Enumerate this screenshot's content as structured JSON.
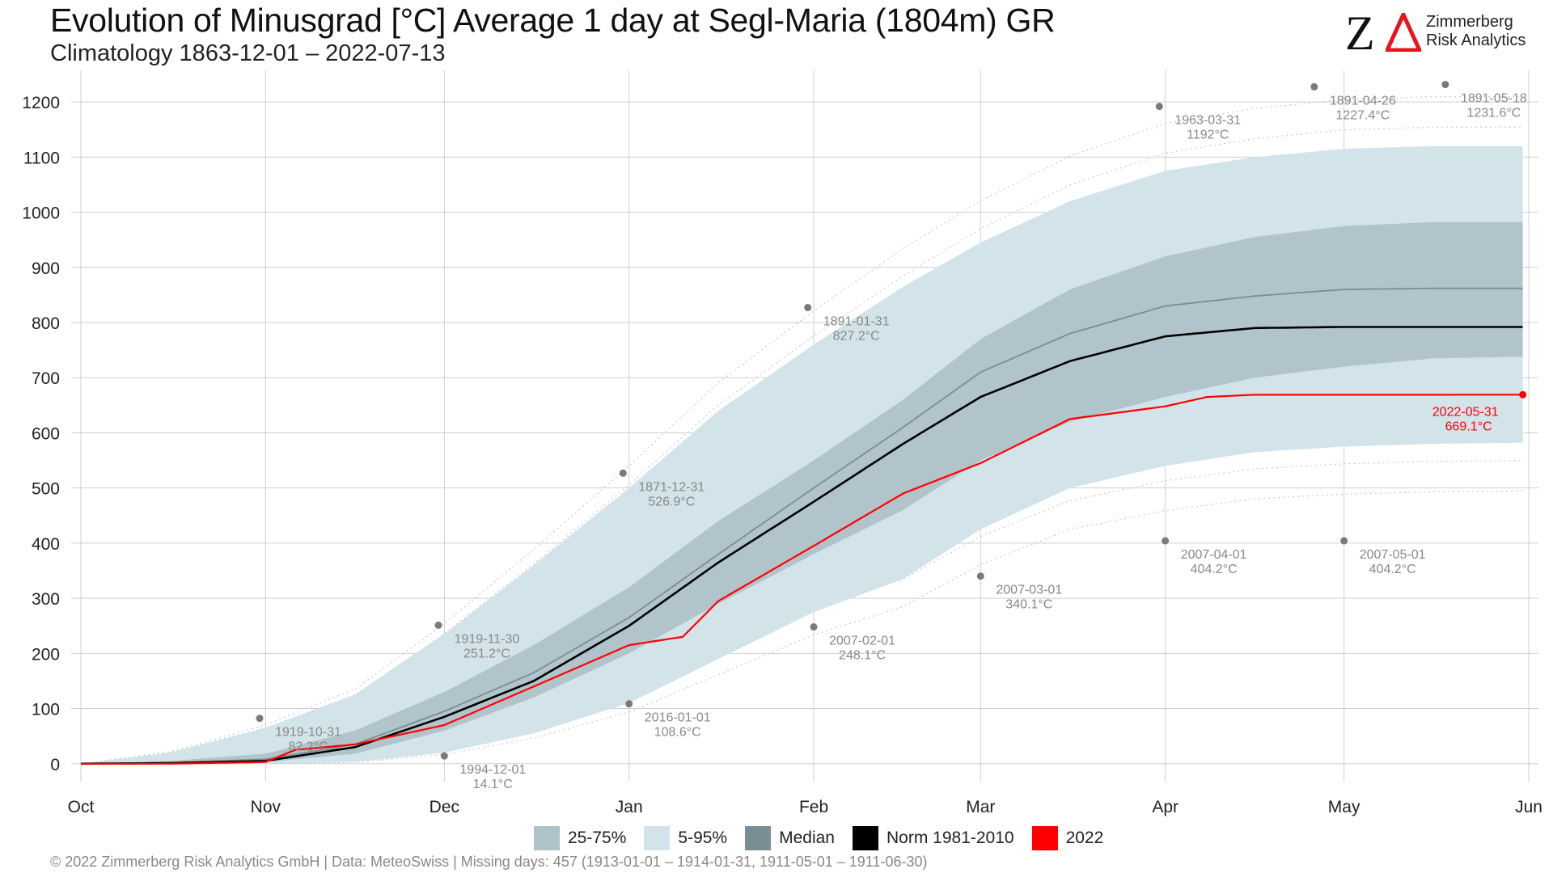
{
  "title": "Evolution of Minusgrad [°C] Average 1 day at Segl-Maria (1804m) GR",
  "subtitle": "Climatology 1863-12-01 – 2022-07-13",
  "logo": {
    "mark": "Z",
    "line1": "Zimmerberg",
    "line2": "Risk Analytics"
  },
  "footer": "©  2022 Zimmerberg Risk Analytics GmbH | Data: MeteoSwiss | Missing days: 457 (1913-01-01 – 1914-01-31, 1911-05-01 – 1911-06-30)",
  "colors": {
    "iqr": "#b0c2c9",
    "p5_95": "#d2e3ea",
    "median": "#798d95",
    "norm": "#000000",
    "current": "#ff0000",
    "record": "#888888"
  },
  "legend": [
    {
      "label": "25-75%",
      "color": "#b0c2c9"
    },
    {
      "label": "5-95%",
      "color": "#d2e3ea"
    },
    {
      "label": "Median",
      "color": "#798d95"
    },
    {
      "label": "Norm 1981-2010",
      "color": "#000000"
    },
    {
      "label": "2022",
      "color": "#ff0000"
    }
  ],
  "chart_data": {
    "type": "area",
    "x_ticks": [
      "Oct",
      "Nov",
      "Dec",
      "Jan",
      "Feb",
      "Mar",
      "Apr",
      "May",
      "Jun"
    ],
    "y_ticks": [
      0,
      100,
      200,
      300,
      400,
      500,
      600,
      700,
      800,
      900,
      1000,
      1100,
      1200
    ],
    "ylim": [
      -15,
      1250
    ],
    "xlim": [
      "2021-10-01",
      "2022-06-01"
    ],
    "grid": true,
    "legend_position": "bottom",
    "series": [
      {
        "name": "5-95%",
        "kind": "band",
        "x": [
          "2021-10-01",
          "2021-10-16",
          "2021-11-01",
          "2021-11-16",
          "2021-12-01",
          "2021-12-16",
          "2022-01-01",
          "2022-01-16",
          "2022-02-01",
          "2022-02-16",
          "2022-03-01",
          "2022-03-16",
          "2022-04-01",
          "2022-04-16",
          "2022-05-01",
          "2022-05-16",
          "2022-05-31"
        ],
        "low": [
          0,
          0,
          0,
          3,
          20,
          55,
          110,
          190,
          275,
          335,
          425,
          500,
          540,
          565,
          575,
          580,
          582
        ],
        "high": [
          0,
          20,
          65,
          125,
          235,
          360,
          500,
          640,
          760,
          865,
          945,
          1020,
          1075,
          1100,
          1115,
          1120,
          1120
        ]
      },
      {
        "name": "25-75%",
        "kind": "band",
        "x": [
          "2021-10-01",
          "2021-10-16",
          "2021-11-01",
          "2021-11-16",
          "2021-12-01",
          "2021-12-16",
          "2022-01-01",
          "2022-01-16",
          "2022-02-01",
          "2022-02-16",
          "2022-03-01",
          "2022-03-16",
          "2022-04-01",
          "2022-04-16",
          "2022-05-01",
          "2022-05-16",
          "2022-05-31"
        ],
        "low": [
          0,
          0,
          3,
          18,
          60,
          120,
          200,
          290,
          380,
          460,
          550,
          620,
          665,
          700,
          720,
          735,
          738
        ],
        "high": [
          0,
          5,
          18,
          60,
          130,
          215,
          320,
          440,
          550,
          660,
          770,
          860,
          920,
          955,
          975,
          982,
          982
        ]
      },
      {
        "name": "Median",
        "kind": "line",
        "x": [
          "2021-10-01",
          "2021-10-16",
          "2021-11-01",
          "2021-11-16",
          "2021-12-01",
          "2021-12-16",
          "2022-01-01",
          "2022-01-16",
          "2022-02-01",
          "2022-02-16",
          "2022-03-01",
          "2022-03-16",
          "2022-04-01",
          "2022-04-16",
          "2022-05-01",
          "2022-05-16",
          "2022-05-31"
        ],
        "values": [
          0,
          2,
          8,
          35,
          95,
          165,
          265,
          380,
          500,
          610,
          710,
          780,
          830,
          848,
          860,
          862,
          862
        ]
      },
      {
        "name": "Norm 1981-2010",
        "kind": "line",
        "x": [
          "2021-10-01",
          "2021-10-16",
          "2021-11-01",
          "2021-11-16",
          "2021-12-01",
          "2021-12-16",
          "2022-01-01",
          "2022-01-16",
          "2022-02-01",
          "2022-02-16",
          "2022-03-01",
          "2022-03-16",
          "2022-04-01",
          "2022-04-16",
          "2022-05-01",
          "2022-05-16",
          "2022-05-31"
        ],
        "values": [
          0,
          1,
          5,
          30,
          85,
          150,
          250,
          365,
          475,
          580,
          665,
          730,
          775,
          790,
          792,
          792,
          792
        ]
      },
      {
        "name": "2022",
        "kind": "line",
        "x": [
          "2021-10-01",
          "2021-10-16",
          "2021-11-01",
          "2021-11-06",
          "2021-11-16",
          "2021-12-01",
          "2021-12-16",
          "2022-01-01",
          "2022-01-10",
          "2022-01-16",
          "2022-02-01",
          "2022-02-16",
          "2022-03-01",
          "2022-03-16",
          "2022-04-01",
          "2022-04-08",
          "2022-04-16",
          "2022-05-01",
          "2022-05-16",
          "2022-05-31"
        ],
        "values": [
          0,
          0,
          3,
          25,
          35,
          70,
          140,
          215,
          230,
          295,
          395,
          490,
          545,
          625,
          648,
          665,
          669,
          669,
          669,
          669.1
        ]
      }
    ],
    "record_points": [
      {
        "date": "2021-10-31",
        "value": 82.2,
        "label": "1919-10-31",
        "value_label": "82.2°C"
      },
      {
        "date": "2021-11-30",
        "value": 251.2,
        "label": "1919-11-30",
        "value_label": "251.2°C"
      },
      {
        "date": "2021-12-01",
        "value": 14.1,
        "label": "1994-12-01",
        "value_label": "14.1°C"
      },
      {
        "date": "2021-12-31",
        "value": 526.9,
        "label": "1871-12-31",
        "value_label": "526.9°C"
      },
      {
        "date": "2022-01-01",
        "value": 108.6,
        "label": "2016-01-01",
        "value_label": "108.6°C"
      },
      {
        "date": "2022-01-31",
        "value": 827.2,
        "label": "1891-01-31",
        "value_label": "827.2°C"
      },
      {
        "date": "2022-02-01",
        "value": 248.1,
        "label": "2007-02-01",
        "value_label": "248.1°C"
      },
      {
        "date": "2022-03-01",
        "value": 340.1,
        "label": "2007-03-01",
        "value_label": "340.1°C"
      },
      {
        "date": "2022-03-31",
        "value": 1192,
        "label": "1963-03-31",
        "value_label": "1192°C"
      },
      {
        "date": "2022-04-01",
        "value": 404.2,
        "label": "2007-04-01",
        "value_label": "404.2°C"
      },
      {
        "date": "2022-04-26",
        "value": 1227.4,
        "label": "1891-04-26",
        "value_label": "1227.4°C"
      },
      {
        "date": "2022-05-01",
        "value": 404.2,
        "label": "2007-05-01",
        "value_label": "404.2°C"
      },
      {
        "date": "2022-05-18",
        "value": 1231.6,
        "label": "1891-05-18",
        "value_label": "1231.6°C"
      }
    ],
    "current_point": {
      "date": "2022-05-31",
      "value": 669.1,
      "label": "2022-05-31",
      "value_label": "669.1°C"
    }
  }
}
